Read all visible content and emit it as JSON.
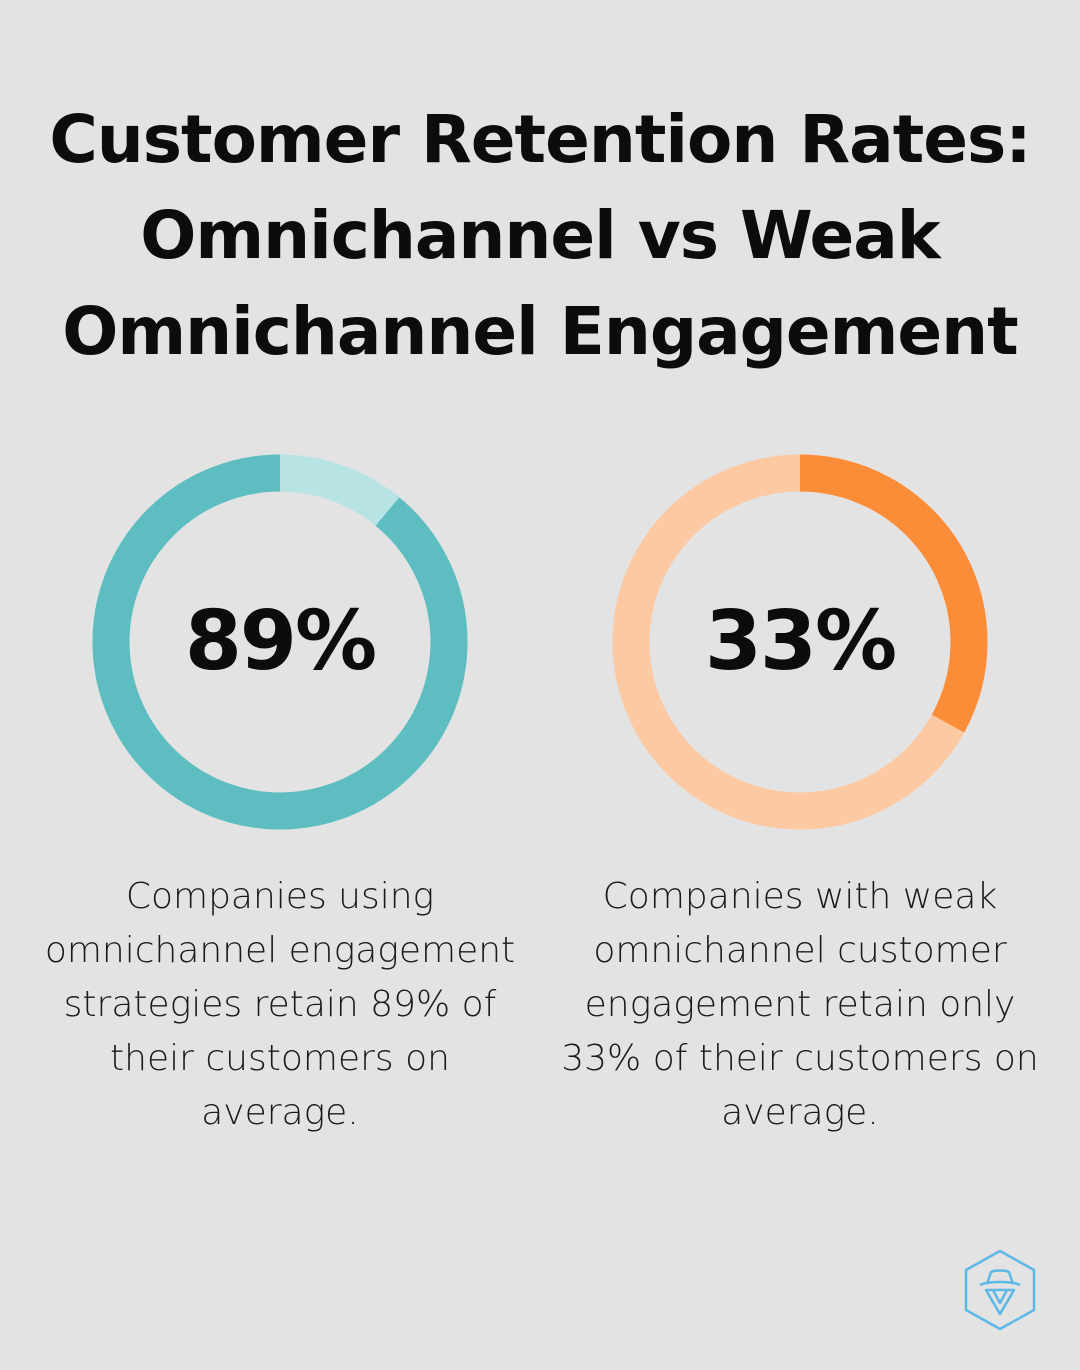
{
  "title_lines": [
    "Customer Retention Rates:",
    "Omnichannel vs Weak",
    "Omnichannel Engagement"
  ],
  "chart_data": [
    {
      "type": "pie",
      "subtype": "donut",
      "value": 89,
      "label": "89%",
      "description_lines": [
        "Companies using",
        "omnichannel engagement",
        "strategies retain 89% of",
        "their customers on",
        "average."
      ],
      "colors": {
        "fill": "#5ebdc1",
        "track": "#b8e3e4"
      }
    },
    {
      "type": "pie",
      "subtype": "donut",
      "value": 33,
      "label": "33%",
      "description_lines": [
        "Companies with weak",
        "omnichannel customer",
        "engagement retain only",
        "33% of their customers on",
        "average."
      ],
      "colors": {
        "fill": "#fb8c38",
        "track": "#fcc9a3"
      }
    }
  ],
  "logo": {
    "icon": "spy-hat-hexagon-icon",
    "color": "#5cb8e6"
  }
}
